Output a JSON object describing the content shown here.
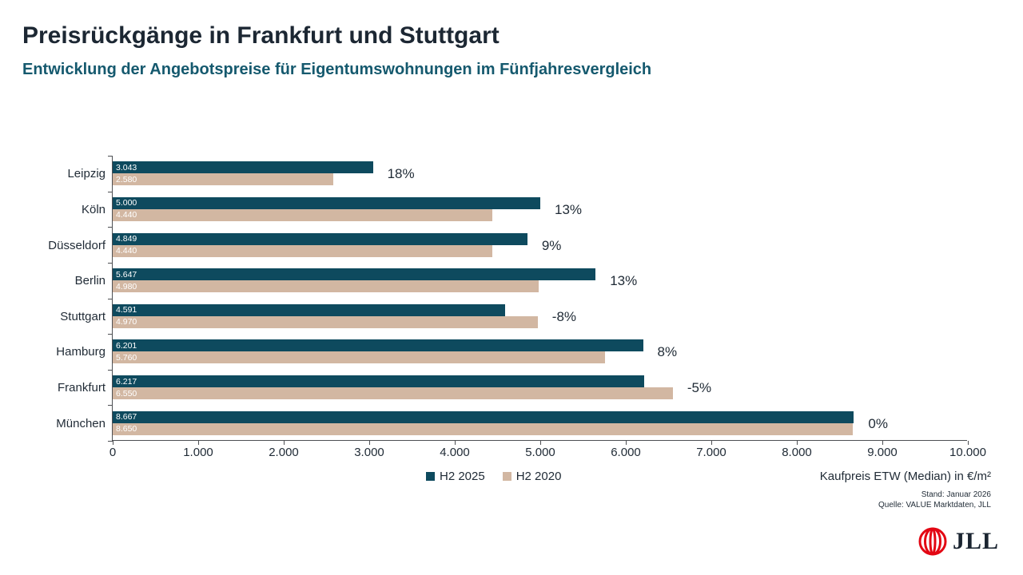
{
  "header": {
    "title": "Preisrückgänge in Frankfurt und Stuttgart",
    "subtitle": "Entwicklung der Angebotspreise für Eigentumswohnungen im Fünfjahresvergleich"
  },
  "chart_data": {
    "type": "bar",
    "orientation": "horizontal",
    "categories": [
      "Leipzig",
      "Köln",
      "Düsseldorf",
      "Berlin",
      "Stuttgart",
      "Hamburg",
      "Frankfurt",
      "München"
    ],
    "series": [
      {
        "name": "H2 2025",
        "color": "#0e4a5e",
        "values": [
          3043,
          5000,
          4849,
          5647,
          4591,
          6201,
          6217,
          8667
        ],
        "value_labels": [
          "3.043",
          "5.000",
          "4.849",
          "5.647",
          "4.591",
          "6.201",
          "6.217",
          "8.667"
        ]
      },
      {
        "name": "H2 2020",
        "color": "#d2b7a2",
        "values": [
          2580,
          4440,
          4440,
          4980,
          4970,
          5760,
          6550,
          8650
        ],
        "value_labels": [
          "2.580",
          "4.440",
          "4.440",
          "4.980",
          "4.970",
          "5.760",
          "6.550",
          "8.650"
        ]
      }
    ],
    "change_labels": [
      "18%",
      "13%",
      "9%",
      "13%",
      "-8%",
      "8%",
      "-5%",
      "0%"
    ],
    "xlabel": "Kaufpreis ETW (Median) in €/m²",
    "xlim": [
      0,
      10000
    ],
    "x_tick_values": [
      0,
      1000,
      2000,
      3000,
      4000,
      5000,
      6000,
      7000,
      8000,
      9000,
      10000
    ],
    "x_tick_labels": [
      "0",
      "1.000",
      "2.000",
      "3.000",
      "4.000",
      "5.000",
      "6.000",
      "7.000",
      "8.000",
      "9.000",
      "10.000"
    ],
    "grid": false,
    "legend_position": "bottom"
  },
  "footer": {
    "stand": "Stand: Januar 2026",
    "quelle": "Quelle: VALUE Marktdaten, JLL"
  },
  "brand": {
    "logo_name": "jll-globe-logo",
    "logo_color": "#e30613",
    "text": "JLL"
  }
}
